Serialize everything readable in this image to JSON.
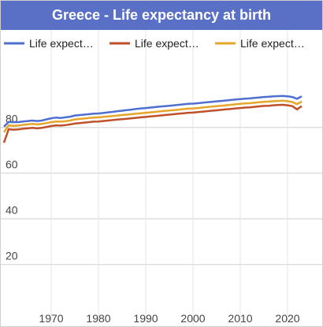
{
  "page_title": "Greece - Life expectancy at birth",
  "chart_data": {
    "type": "line",
    "title": "Greece - Life expectancy at birth",
    "xlabel": "",
    "ylabel": "",
    "x_ticks": [
      1970,
      1980,
      1990,
      2000,
      2010,
      2020
    ],
    "y_ticks": [
      20,
      40,
      60,
      80
    ],
    "xlim": [
      1960,
      2027
    ],
    "ylim": [
      3,
      103
    ],
    "grid": true,
    "legend_position": "top",
    "x": [
      1960,
      1961,
      1962,
      1963,
      1964,
      1965,
      1966,
      1967,
      1968,
      1969,
      1970,
      1971,
      1972,
      1973,
      1974,
      1975,
      1976,
      1977,
      1978,
      1979,
      1980,
      1981,
      1982,
      1983,
      1984,
      1985,
      1986,
      1987,
      1988,
      1989,
      1990,
      1991,
      1992,
      1993,
      1994,
      1995,
      1996,
      1997,
      1998,
      1999,
      2000,
      2001,
      2002,
      2003,
      2004,
      2005,
      2006,
      2007,
      2008,
      2009,
      2010,
      2011,
      2012,
      2013,
      2014,
      2015,
      2016,
      2017,
      2018,
      2019,
      2020,
      2021,
      2022,
      2023
    ],
    "series": [
      {
        "name": "Life expect…",
        "color": "#4f6fd0",
        "values": [
          80.3,
          82.4,
          82.3,
          82.3,
          82.6,
          82.8,
          83.0,
          82.8,
          83.0,
          83.5,
          84.0,
          84.3,
          84.1,
          84.4,
          84.7,
          85.2,
          85.4,
          85.6,
          85.8,
          86.0,
          86.1,
          86.3,
          86.6,
          86.8,
          87.1,
          87.3,
          87.6,
          87.8,
          88.1,
          88.3,
          88.5,
          88.7,
          88.9,
          89.1,
          89.3,
          89.5,
          89.7,
          89.9,
          90.1,
          90.3,
          90.4,
          90.6,
          90.8,
          91.0,
          91.2,
          91.4,
          91.6,
          91.8,
          92.0,
          92.2,
          92.4,
          92.6,
          92.7,
          92.9,
          93.1,
          93.3,
          93.4,
          93.6,
          93.7,
          93.8,
          93.6,
          93.3,
          92.5,
          93.6
        ]
      },
      {
        "name": "Life expect…",
        "color": "#c0502a",
        "values": [
          73.3,
          79.2,
          79.0,
          79.1,
          79.4,
          79.6,
          79.8,
          79.6,
          79.8,
          80.2,
          80.6,
          80.9,
          80.8,
          81.0,
          81.3,
          81.7,
          81.9,
          82.1,
          82.3,
          82.5,
          82.6,
          82.8,
          83.0,
          83.2,
          83.4,
          83.6,
          83.8,
          84.0,
          84.2,
          84.4,
          84.6,
          84.8,
          85.0,
          85.2,
          85.4,
          85.6,
          85.8,
          86.0,
          86.2,
          86.4,
          86.5,
          86.7,
          86.9,
          87.1,
          87.3,
          87.5,
          87.7,
          87.9,
          88.1,
          88.3,
          88.5,
          88.7,
          88.8,
          89.0,
          89.2,
          89.4,
          89.5,
          89.7,
          89.8,
          89.9,
          89.7,
          89.3,
          87.9,
          89.3
        ]
      },
      {
        "name": "Life expect…",
        "color": "#e6a52b",
        "values": [
          77.9,
          80.9,
          80.7,
          80.8,
          81.1,
          81.3,
          81.5,
          81.3,
          81.5,
          81.9,
          82.3,
          82.6,
          82.5,
          82.7,
          83.0,
          83.5,
          83.7,
          83.9,
          84.1,
          84.3,
          84.4,
          84.6,
          84.8,
          85.0,
          85.2,
          85.4,
          85.6,
          85.8,
          86.0,
          86.2,
          86.4,
          86.6,
          86.8,
          87.0,
          87.2,
          87.4,
          87.6,
          87.8,
          88.0,
          88.2,
          88.3,
          88.5,
          88.7,
          88.9,
          89.1,
          89.3,
          89.5,
          89.7,
          89.9,
          90.1,
          90.3,
          90.5,
          90.6,
          90.8,
          91.0,
          91.2,
          91.3,
          91.5,
          91.6,
          91.7,
          91.5,
          91.1,
          90.2,
          91.3
        ]
      }
    ]
  }
}
